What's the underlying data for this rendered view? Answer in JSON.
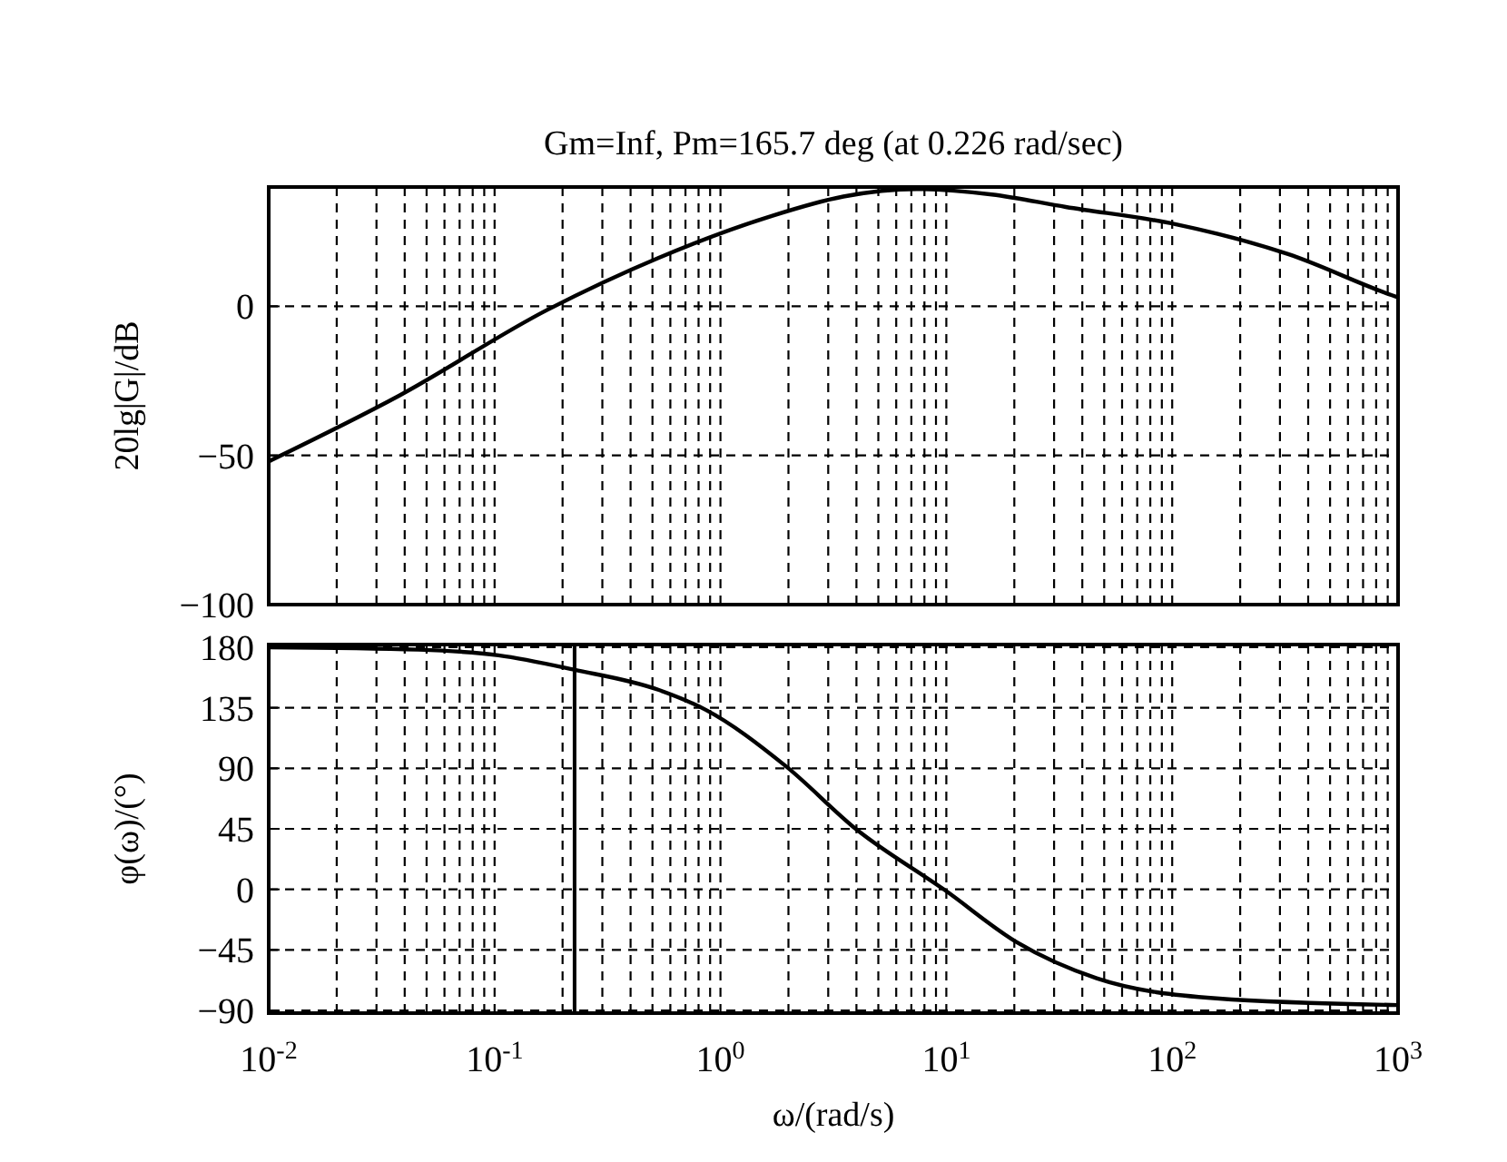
{
  "chart_data": [
    {
      "type": "line",
      "title": "Gm=Inf, Pm=165.7 deg (at 0.226 rad/sec)",
      "ylabel": "20lg|G|/dB",
      "log": "x",
      "grid": true,
      "tick_labels": "y",
      "line_style": "solid",
      "xlim": [
        0.01,
        1000
      ],
      "ylim": [
        -100,
        40
      ],
      "xticks": [
        {
          "value": 0.01,
          "label": null
        },
        {
          "value": 0.02,
          "label": null
        },
        {
          "value": 0.03,
          "label": null
        },
        {
          "value": 0.04,
          "label": null
        },
        {
          "value": 0.05,
          "label": null
        },
        {
          "value": 0.06,
          "label": null
        },
        {
          "value": 0.07,
          "label": null
        },
        {
          "value": 0.08,
          "label": null
        },
        {
          "value": 0.09,
          "label": null
        },
        {
          "value": 0.1,
          "label": null
        },
        {
          "value": 0.2,
          "label": null
        },
        {
          "value": 0.3,
          "label": null
        },
        {
          "value": 0.4,
          "label": null
        },
        {
          "value": 0.5,
          "label": null
        },
        {
          "value": 0.6,
          "label": null
        },
        {
          "value": 0.7,
          "label": null
        },
        {
          "value": 0.8,
          "label": null
        },
        {
          "value": 0.9,
          "label": null
        },
        {
          "value": 1,
          "label": null
        },
        {
          "value": 2,
          "label": null
        },
        {
          "value": 3,
          "label": null
        },
        {
          "value": 4,
          "label": null
        },
        {
          "value": 5,
          "label": null
        },
        {
          "value": 6,
          "label": null
        },
        {
          "value": 7,
          "label": null
        },
        {
          "value": 8,
          "label": null
        },
        {
          "value": 9,
          "label": null
        },
        {
          "value": 10,
          "label": null
        },
        {
          "value": 20,
          "label": null
        },
        {
          "value": 30,
          "label": null
        },
        {
          "value": 40,
          "label": null
        },
        {
          "value": 50,
          "label": null
        },
        {
          "value": 60,
          "label": null
        },
        {
          "value": 70,
          "label": null
        },
        {
          "value": 80,
          "label": null
        },
        {
          "value": 90,
          "label": null
        },
        {
          "value": 100,
          "label": null
        },
        {
          "value": 200,
          "label": null
        },
        {
          "value": 300,
          "label": null
        },
        {
          "value": 400,
          "label": null
        },
        {
          "value": 500,
          "label": null
        },
        {
          "value": 600,
          "label": null
        },
        {
          "value": 700,
          "label": null
        },
        {
          "value": 800,
          "label": null
        },
        {
          "value": 900,
          "label": null
        },
        {
          "value": 1000,
          "label": null
        }
      ],
      "yticks": [
        {
          "value": -100,
          "label": "−100"
        },
        {
          "value": -50,
          "label": "−50"
        },
        0
      ],
      "x": [
        0.01,
        0.0377,
        0.171,
        0.53,
        1.64,
        3.5,
        7.4,
        15.9,
        33.8,
        104,
        326,
        940,
        1000
      ],
      "series": [
        {
          "color": "#000000",
          "values": [
            -52,
            -30,
            -1.2,
            16.2,
            30,
            36.8,
            39.3,
            37.5,
            33.3,
            27.5,
            17.5,
            3.7,
            3
          ]
        }
      ]
    },
    {
      "type": "line",
      "ylabel": "φ(ω)/(°)",
      "xlabel": "ω/(rad/s)",
      "log": "x",
      "grid": true,
      "line_style": "solid",
      "xlim": [
        0.01,
        1000
      ],
      "ylim": [
        -92,
        182
      ],
      "xticks": [
        {
          "value": 0.01,
          "label": "10$^{-2}$"
        },
        {
          "value": 0.02,
          "label": null
        },
        {
          "value": 0.03,
          "label": null
        },
        {
          "value": 0.04,
          "label": null
        },
        {
          "value": 0.05,
          "label": null
        },
        {
          "value": 0.06,
          "label": null
        },
        {
          "value": 0.07,
          "label": null
        },
        {
          "value": 0.08,
          "label": null
        },
        {
          "value": 0.09,
          "label": null
        },
        {
          "value": 0.1,
          "label": "10$^{-1}$"
        },
        {
          "value": 0.2,
          "label": null
        },
        {
          "value": 0.3,
          "label": null
        },
        {
          "value": 0.4,
          "label": null
        },
        {
          "value": 0.5,
          "label": null
        },
        {
          "value": 0.6,
          "label": null
        },
        {
          "value": 0.7,
          "label": null
        },
        {
          "value": 0.8,
          "label": null
        },
        {
          "value": 0.9,
          "label": null
        },
        {
          "value": 1,
          "label": "10$^{0}$"
        },
        {
          "value": 2,
          "label": null
        },
        {
          "value": 3,
          "label": null
        },
        {
          "value": 4,
          "label": null
        },
        {
          "value": 5,
          "label": null
        },
        {
          "value": 6,
          "label": null
        },
        {
          "value": 7,
          "label": null
        },
        {
          "value": 8,
          "label": null
        },
        {
          "value": 9,
          "label": null
        },
        {
          "value": 10,
          "label": "10$^{1}$"
        },
        {
          "value": 20,
          "label": null
        },
        {
          "value": 30,
          "label": null
        },
        {
          "value": 40,
          "label": null
        },
        {
          "value": 50,
          "label": null
        },
        {
          "value": 60,
          "label": null
        },
        {
          "value": 70,
          "label": null
        },
        {
          "value": 80,
          "label": null
        },
        {
          "value": 90,
          "label": null
        },
        {
          "value": 100,
          "label": "10$^{2}$"
        },
        {
          "value": 200,
          "label": null
        },
        {
          "value": 300,
          "label": null
        },
        {
          "value": 400,
          "label": null
        },
        {
          "value": 500,
          "label": null
        },
        {
          "value": 600,
          "label": null
        },
        {
          "value": 700,
          "label": null
        },
        {
          "value": 800,
          "label": null
        },
        {
          "value": 900,
          "label": null
        },
        {
          "value": 1000,
          "label": "10$^{3}$"
        }
      ],
      "yticks": [
        {
          "value": -90,
          "label": "−90"
        },
        {
          "value": -45,
          "label": "−45"
        },
        0,
        45,
        90,
        135,
        180
      ],
      "x": [
        0.01,
        0.046,
        0.104,
        0.225,
        0.53,
        0.86,
        1.94,
        4.03,
        9.86,
        20.5,
        46.3,
        157,
        1000
      ],
      "series": [
        {
          "color": "#000000",
          "values": [
            180,
            178.2,
            174,
            163.3,
            148.4,
            133.5,
            91.8,
            44.1,
            -0.6,
            -39.3,
            -66.1,
            -81,
            -86
          ]
        }
      ],
      "ref_lines": [
        {
          "axis": "x",
          "value": 0.226,
          "color": "#000000",
          "line_style": "solid"
        }
      ]
    }
  ]
}
